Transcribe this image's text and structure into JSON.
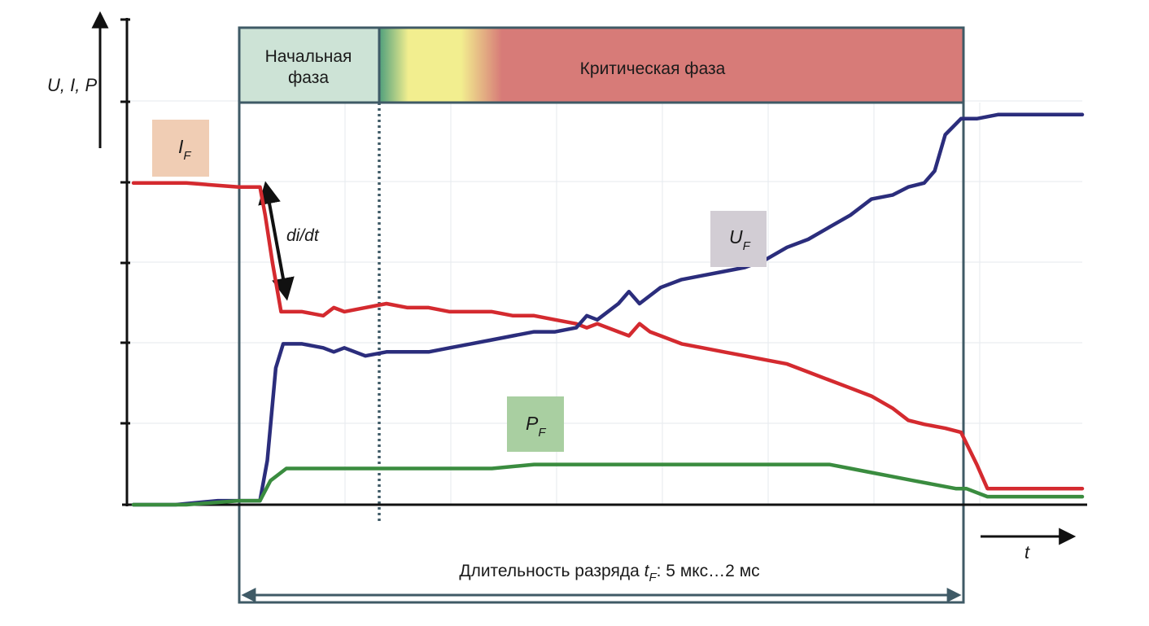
{
  "chart_data": {
    "type": "line",
    "title": "",
    "ylabel": "U, I, P",
    "xlabel": "t",
    "grid": true,
    "phases": {
      "initial": "Начальная\nфаза",
      "critical": "Критическая фаза"
    },
    "duration_label_main": "Длительность разряда ",
    "duration_label_var": "t",
    "duration_label_sub": "F",
    "duration_label_rest": ": 5 мкс…2 мс",
    "annotation_didt": "di/dt",
    "colors": {
      "I": "#d42a2f",
      "U": "#2b2d7c",
      "P": "#3a8c3f",
      "phase_initial": "#cde3d6",
      "phase_critical": "#d77b78",
      "phase_yellow": "#f2ee8f",
      "frame": "#3f5a66"
    },
    "series": [
      {
        "name": "I",
        "sub": "F",
        "label_bg": "#f0cdb4",
        "points": [
          [
            0,
            0.8
          ],
          [
            0.5,
            0.8
          ],
          [
            1.0,
            0.79
          ],
          [
            1.2,
            0.79
          ],
          [
            1.25,
            0.72
          ],
          [
            1.32,
            0.6
          ],
          [
            1.4,
            0.48
          ],
          [
            1.6,
            0.48
          ],
          [
            1.8,
            0.47
          ],
          [
            1.9,
            0.49
          ],
          [
            2.0,
            0.48
          ],
          [
            2.2,
            0.49
          ],
          [
            2.4,
            0.5
          ],
          [
            2.6,
            0.49
          ],
          [
            2.8,
            0.49
          ],
          [
            3.0,
            0.48
          ],
          [
            3.2,
            0.48
          ],
          [
            3.4,
            0.48
          ],
          [
            3.6,
            0.47
          ],
          [
            3.8,
            0.47
          ],
          [
            4.0,
            0.46
          ],
          [
            4.2,
            0.45
          ],
          [
            4.3,
            0.44
          ],
          [
            4.4,
            0.45
          ],
          [
            4.6,
            0.43
          ],
          [
            4.7,
            0.42
          ],
          [
            4.8,
            0.45
          ],
          [
            4.9,
            0.43
          ],
          [
            5.0,
            0.42
          ],
          [
            5.2,
            0.4
          ],
          [
            5.4,
            0.39
          ],
          [
            5.6,
            0.38
          ],
          [
            5.8,
            0.37
          ],
          [
            6.0,
            0.36
          ],
          [
            6.2,
            0.35
          ],
          [
            6.4,
            0.33
          ],
          [
            6.6,
            0.31
          ],
          [
            6.8,
            0.29
          ],
          [
            7.0,
            0.27
          ],
          [
            7.2,
            0.24
          ],
          [
            7.35,
            0.21
          ],
          [
            7.5,
            0.2
          ],
          [
            7.7,
            0.19
          ],
          [
            7.85,
            0.18
          ],
          [
            8.0,
            0.1
          ],
          [
            8.1,
            0.04
          ],
          [
            8.3,
            0.04
          ],
          [
            8.6,
            0.04
          ],
          [
            9.0,
            0.04
          ]
        ]
      },
      {
        "name": "U",
        "sub": "F",
        "label_bg": "#d2cdd4",
        "points": [
          [
            0,
            0.0
          ],
          [
            0.4,
            0.0
          ],
          [
            0.8,
            0.01
          ],
          [
            1.2,
            0.01
          ],
          [
            1.27,
            0.11
          ],
          [
            1.35,
            0.34
          ],
          [
            1.42,
            0.4
          ],
          [
            1.6,
            0.4
          ],
          [
            1.8,
            0.39
          ],
          [
            1.9,
            0.38
          ],
          [
            2.0,
            0.39
          ],
          [
            2.2,
            0.37
          ],
          [
            2.4,
            0.38
          ],
          [
            2.6,
            0.38
          ],
          [
            2.8,
            0.38
          ],
          [
            3.0,
            0.39
          ],
          [
            3.2,
            0.4
          ],
          [
            3.4,
            0.41
          ],
          [
            3.6,
            0.42
          ],
          [
            3.8,
            0.43
          ],
          [
            4.0,
            0.43
          ],
          [
            4.2,
            0.44
          ],
          [
            4.3,
            0.47
          ],
          [
            4.4,
            0.46
          ],
          [
            4.5,
            0.48
          ],
          [
            4.6,
            0.5
          ],
          [
            4.7,
            0.53
          ],
          [
            4.8,
            0.5
          ],
          [
            4.9,
            0.52
          ],
          [
            5.0,
            0.54
          ],
          [
            5.2,
            0.56
          ],
          [
            5.4,
            0.57
          ],
          [
            5.6,
            0.58
          ],
          [
            5.8,
            0.59
          ],
          [
            6.0,
            0.61
          ],
          [
            6.2,
            0.64
          ],
          [
            6.4,
            0.66
          ],
          [
            6.6,
            0.69
          ],
          [
            6.8,
            0.72
          ],
          [
            7.0,
            0.76
          ],
          [
            7.2,
            0.77
          ],
          [
            7.35,
            0.79
          ],
          [
            7.5,
            0.8
          ],
          [
            7.6,
            0.83
          ],
          [
            7.7,
            0.92
          ],
          [
            7.85,
            0.96
          ],
          [
            8.0,
            0.96
          ],
          [
            8.2,
            0.97
          ],
          [
            8.6,
            0.97
          ],
          [
            9.0,
            0.97
          ]
        ]
      },
      {
        "name": "P",
        "sub": "F",
        "label_bg": "#a9cfa1",
        "points": [
          [
            0,
            0.0
          ],
          [
            0.5,
            0.0
          ],
          [
            1.0,
            0.01
          ],
          [
            1.2,
            0.01
          ],
          [
            1.3,
            0.06
          ],
          [
            1.45,
            0.09
          ],
          [
            2.0,
            0.09
          ],
          [
            2.6,
            0.09
          ],
          [
            2.8,
            0.09
          ],
          [
            3.4,
            0.09
          ],
          [
            3.8,
            0.1
          ],
          [
            4.4,
            0.1
          ],
          [
            5.0,
            0.1
          ],
          [
            5.6,
            0.1
          ],
          [
            6.2,
            0.1
          ],
          [
            6.6,
            0.1
          ],
          [
            6.8,
            0.09
          ],
          [
            7.0,
            0.08
          ],
          [
            7.2,
            0.07
          ],
          [
            7.4,
            0.06
          ],
          [
            7.6,
            0.05
          ],
          [
            7.8,
            0.04
          ],
          [
            7.9,
            0.04
          ],
          [
            8.1,
            0.02
          ],
          [
            8.3,
            0.02
          ],
          [
            8.6,
            0.02
          ],
          [
            9.0,
            0.02
          ]
        ]
      }
    ]
  }
}
